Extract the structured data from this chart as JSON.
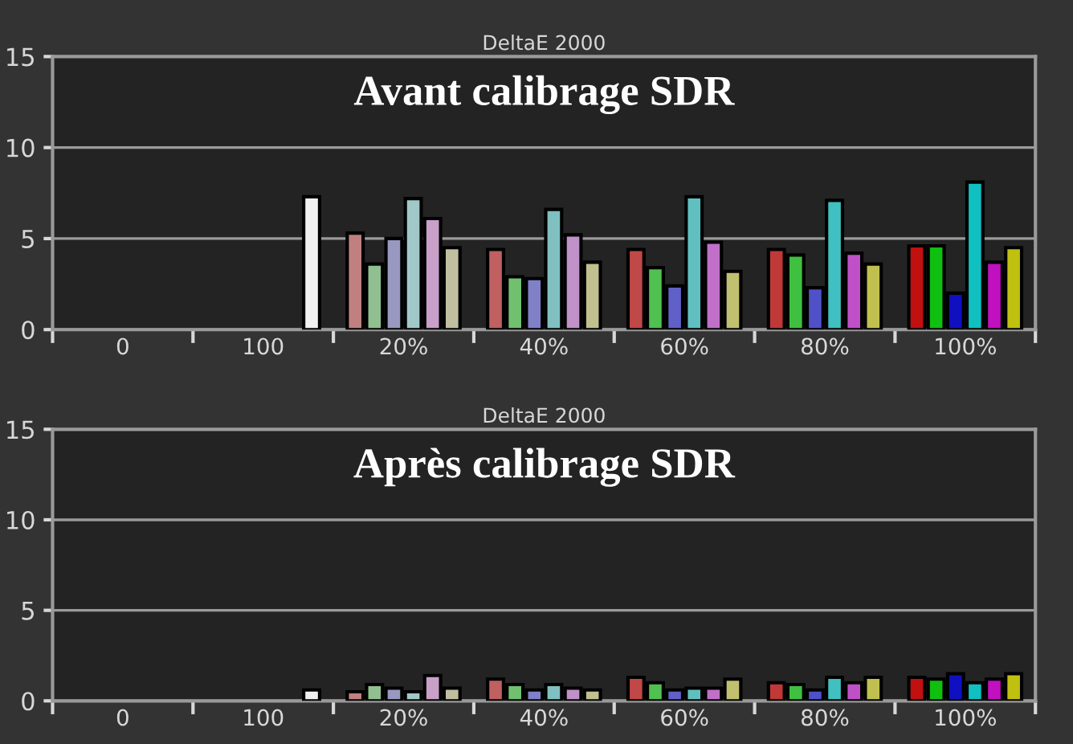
{
  "chart_data": [
    {
      "type": "bar",
      "title": "DeltaE 2000",
      "annotations": [
        "Avant calibrage SDR"
      ],
      "categories": [
        "0",
        "100",
        "20%",
        "40%",
        "60%",
        "80%",
        "100%"
      ],
      "ylim": [
        0,
        15
      ],
      "yticks": [
        0,
        5,
        10,
        15
      ],
      "grid": "y",
      "series": [
        {
          "values": [
            null,
            null,
            5.3,
            4.4,
            4.4,
            4.4,
            4.6
          ],
          "colors": [
            null,
            null,
            "#c08080",
            "#c06060",
            "#c04848",
            "#c03838",
            "#c01010"
          ]
        },
        {
          "values": [
            null,
            null,
            3.6,
            2.9,
            3.4,
            4.1,
            4.6
          ],
          "colors": [
            null,
            null,
            "#90c090",
            "#70c070",
            "#50c050",
            "#40c040",
            "#10c010"
          ]
        },
        {
          "values": [
            null,
            null,
            5.0,
            2.8,
            2.4,
            2.3,
            2.0
          ],
          "colors": [
            null,
            null,
            "#9898c0",
            "#8080c8",
            "#6060c8",
            "#5050c8",
            "#1010c0"
          ]
        },
        {
          "values": [
            null,
            null,
            7.2,
            6.6,
            7.3,
            7.1,
            8.1
          ],
          "colors": [
            null,
            null,
            "#a0c8c8",
            "#80c0c0",
            "#60c0c0",
            "#40c0c0",
            "#10c0c0"
          ]
        },
        {
          "values": [
            null,
            null,
            6.1,
            5.2,
            4.8,
            4.2,
            3.7
          ],
          "colors": [
            null,
            null,
            "#c8a0c8",
            "#c090c8",
            "#c070c8",
            "#c050c8",
            "#c010c0"
          ]
        },
        {
          "values": [
            null,
            7.3,
            4.5,
            3.7,
            3.2,
            3.6,
            4.5
          ],
          "colors": [
            null,
            "#f0f0f0",
            "#c0c0a0",
            "#c0c090",
            "#c0c070",
            "#c0c050",
            "#c0c010"
          ]
        }
      ]
    },
    {
      "type": "bar",
      "title": "DeltaE 2000",
      "annotations": [
        "Après calibrage SDR"
      ],
      "categories": [
        "0",
        "100",
        "20%",
        "40%",
        "60%",
        "80%",
        "100%"
      ],
      "ylim": [
        0,
        15
      ],
      "yticks": [
        0,
        5,
        10,
        15
      ],
      "grid": "y",
      "series": [
        {
          "values": [
            null,
            null,
            0.5,
            1.2,
            1.3,
            1.0,
            1.3
          ],
          "colors": [
            null,
            null,
            "#c08080",
            "#c06060",
            "#c04848",
            "#c03838",
            "#c01010"
          ]
        },
        {
          "values": [
            null,
            null,
            0.9,
            0.9,
            1.0,
            0.9,
            1.2
          ],
          "colors": [
            null,
            null,
            "#90c090",
            "#70c070",
            "#50c050",
            "#40c040",
            "#10c010"
          ]
        },
        {
          "values": [
            null,
            null,
            0.7,
            0.6,
            0.6,
            0.6,
            1.5
          ],
          "colors": [
            null,
            null,
            "#9898c0",
            "#8080c8",
            "#6060c8",
            "#5050c8",
            "#1010c0"
          ]
        },
        {
          "values": [
            null,
            null,
            0.5,
            0.9,
            0.7,
            1.3,
            1.0
          ],
          "colors": [
            null,
            null,
            "#a0c8c8",
            "#80c0c0",
            "#60c0c0",
            "#40c0c0",
            "#10c0c0"
          ]
        },
        {
          "values": [
            null,
            null,
            1.4,
            0.7,
            0.7,
            1.0,
            1.2
          ],
          "colors": [
            null,
            null,
            "#c8a0c8",
            "#c090c8",
            "#c070c8",
            "#c050c8",
            "#c010c0"
          ]
        },
        {
          "values": [
            null,
            0.6,
            0.7,
            0.6,
            1.2,
            1.3,
            1.5
          ],
          "colors": [
            null,
            "#f0f0f0",
            "#c0c0a0",
            "#c0c090",
            "#c0c070",
            "#c0c050",
            "#c0c010"
          ]
        }
      ]
    }
  ]
}
